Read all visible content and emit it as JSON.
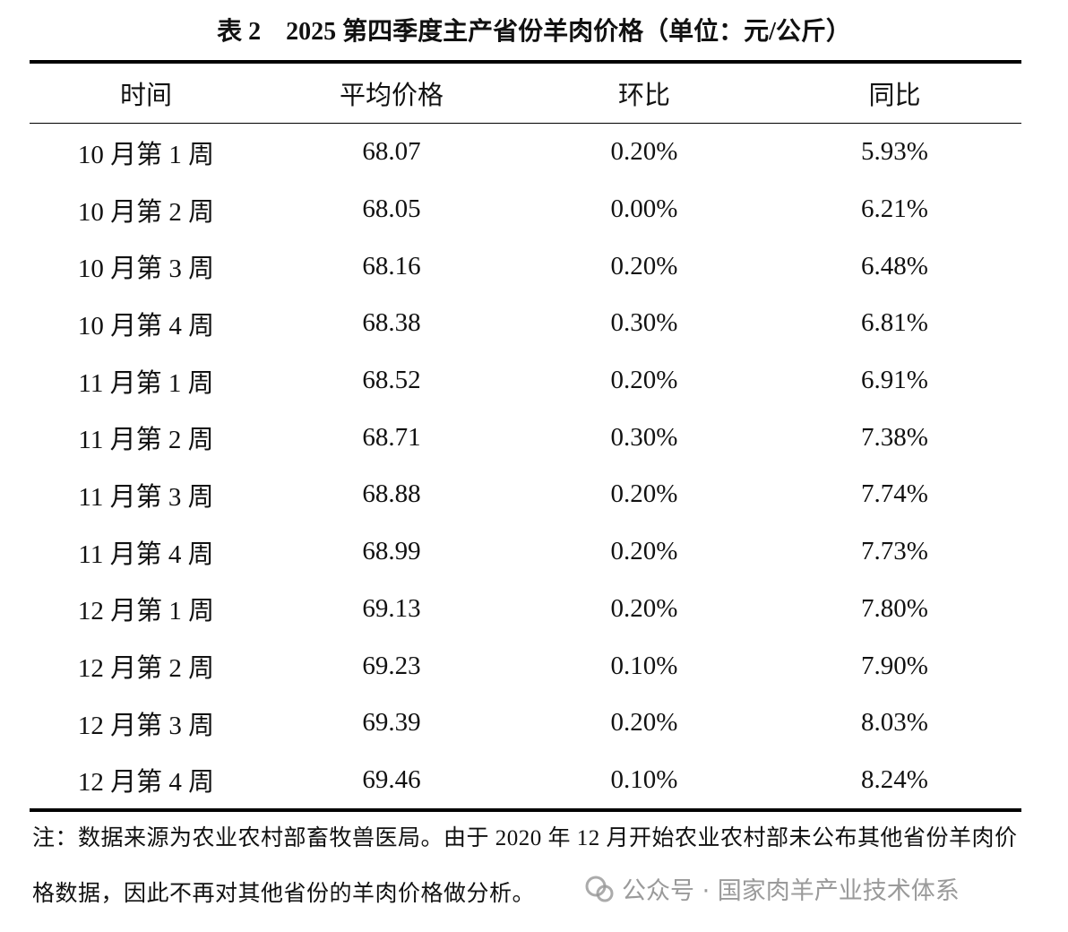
{
  "title": "表 2　2025 第四季度主产省份羊肉价格（单位：元/公斤）",
  "table": {
    "headers": [
      "时间",
      "平均价格",
      "环比",
      "同比"
    ],
    "rows": [
      [
        "10 月第 1 周",
        "68.07",
        "0.20%",
        "5.93%"
      ],
      [
        "10 月第 2 周",
        "68.05",
        "0.00%",
        "6.21%"
      ],
      [
        "10 月第 3 周",
        "68.16",
        "0.20%",
        "6.48%"
      ],
      [
        "10 月第 4 周",
        "68.38",
        "0.30%",
        "6.81%"
      ],
      [
        "11 月第 1 周",
        "68.52",
        "0.20%",
        "6.91%"
      ],
      [
        "11 月第 2 周",
        "68.71",
        "0.30%",
        "7.38%"
      ],
      [
        "11 月第 3 周",
        "68.88",
        "0.20%",
        "7.74%"
      ],
      [
        "11 月第 4 周",
        "68.99",
        "0.20%",
        "7.73%"
      ],
      [
        "12 月第 1 周",
        "69.13",
        "0.20%",
        "7.80%"
      ],
      [
        "12 月第 2 周",
        "69.23",
        "0.10%",
        "7.90%"
      ],
      [
        "12 月第 3 周",
        "69.39",
        "0.20%",
        "8.03%"
      ],
      [
        "12 月第 4 周",
        "69.46",
        "0.10%",
        "8.24%"
      ]
    ]
  },
  "note": "注：数据来源为农业农村部畜牧兽医局。由于 2020 年 12 月开始农业农村部未公布其他省份羊肉价格数据，因此不再对其他省份的羊肉价格做分析。",
  "watermark": "公众号 · 国家肉羊产业技术体系"
}
